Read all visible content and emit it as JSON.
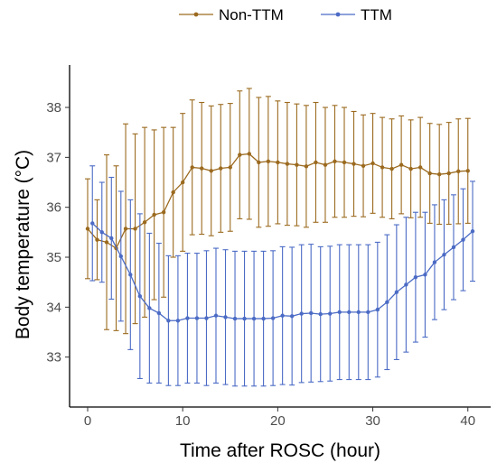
{
  "chart_data": {
    "type": "line",
    "title": "",
    "xlabel": "Time after ROSC (hour)",
    "ylabel": "Body temperature (°C)",
    "xlim": [
      -1.9,
      42.4
    ],
    "ylim": [
      32.0,
      38.85
    ],
    "xticks": [
      0,
      10,
      20,
      30,
      40
    ],
    "yticks": [
      33,
      34,
      35,
      36,
      37,
      38
    ],
    "grid": false,
    "legend_position": "top",
    "series": [
      {
        "name": "Non-TTM",
        "color": "#9b6a1f",
        "x": [
          0,
          1,
          2,
          3,
          4,
          5,
          6,
          7,
          8,
          9,
          10,
          11,
          12,
          13,
          14,
          15,
          16,
          17,
          18,
          19,
          20,
          21,
          22,
          23,
          24,
          25,
          26,
          27,
          28,
          29,
          30,
          31,
          32,
          33,
          34,
          35,
          36,
          37,
          38,
          39,
          40
        ],
        "y": [
          35.57,
          35.35,
          35.3,
          35.18,
          35.57,
          35.57,
          35.7,
          35.85,
          35.9,
          36.3,
          36.5,
          36.8,
          36.78,
          36.73,
          36.78,
          36.8,
          37.05,
          37.07,
          36.9,
          36.92,
          36.9,
          36.87,
          36.85,
          36.82,
          36.9,
          36.85,
          36.92,
          36.9,
          36.87,
          36.83,
          36.88,
          36.8,
          36.77,
          36.85,
          36.77,
          36.8,
          36.68,
          36.66,
          36.68,
          36.72,
          36.73
        ],
        "err": [
          1.0,
          0.8,
          1.75,
          1.65,
          2.1,
          1.9,
          1.9,
          1.7,
          1.7,
          1.3,
          1.38,
          1.35,
          1.32,
          1.3,
          1.28,
          1.28,
          1.28,
          1.31,
          1.3,
          1.3,
          1.23,
          1.23,
          1.22,
          1.22,
          1.2,
          1.15,
          1.12,
          1.1,
          1.05,
          1.02,
          1.0,
          1.0,
          1.0,
          0.98,
          0.98,
          1.0,
          1.0,
          1.0,
          1.02,
          1.05,
          1.05
        ]
      },
      {
        "name": "TTM",
        "color": "#4b6bc5",
        "x": [
          0.5,
          1.5,
          2.5,
          3.5,
          4.5,
          5.5,
          6.5,
          7.5,
          8.5,
          9.5,
          10.5,
          11.5,
          12.5,
          13.5,
          14.5,
          15.5,
          16.5,
          17.5,
          18.5,
          19.5,
          20.5,
          21.5,
          22.5,
          23.5,
          24.5,
          25.5,
          26.5,
          27.5,
          28.5,
          29.5,
          30.5,
          31.5,
          32.5,
          33.5,
          34.5,
          35.5,
          36.5,
          37.5,
          38.5,
          39.5,
          40.5
        ],
        "y": [
          35.68,
          35.5,
          35.38,
          35.02,
          34.65,
          34.22,
          33.98,
          33.88,
          33.73,
          33.73,
          33.78,
          33.78,
          33.78,
          33.83,
          33.8,
          33.77,
          33.77,
          33.77,
          33.77,
          33.78,
          33.83,
          33.82,
          33.87,
          33.88,
          33.86,
          33.87,
          33.9,
          33.9,
          33.9,
          33.9,
          33.95,
          34.1,
          34.3,
          34.45,
          34.6,
          34.65,
          34.9,
          35.05,
          35.2,
          35.35,
          35.52
        ],
        "err": [
          1.15,
          1.0,
          1.22,
          1.3,
          1.5,
          1.65,
          1.5,
          1.4,
          1.3,
          1.3,
          1.3,
          1.3,
          1.35,
          1.35,
          1.35,
          1.35,
          1.35,
          1.35,
          1.35,
          1.35,
          1.38,
          1.38,
          1.38,
          1.38,
          1.35,
          1.35,
          1.35,
          1.35,
          1.35,
          1.35,
          1.35,
          1.35,
          1.35,
          1.35,
          1.3,
          1.25,
          1.15,
          1.1,
          1.05,
          1.02,
          1.0
        ]
      }
    ]
  }
}
